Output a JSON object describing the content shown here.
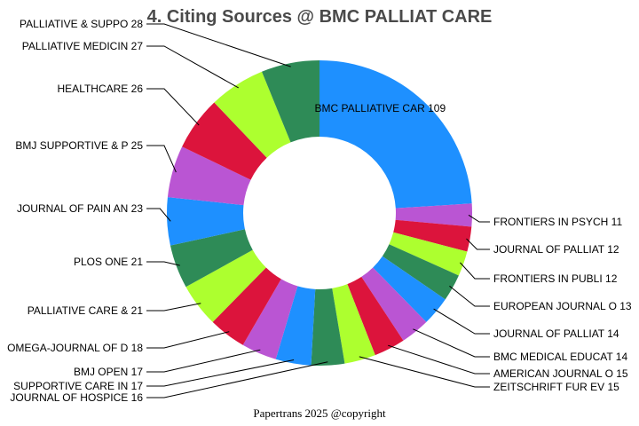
{
  "chart_data": {
    "type": "pie",
    "title": "4. Citing Sources @ BMC PALLIAT CARE",
    "donut": true,
    "slices": [
      {
        "label": "BMC PALLIATIVE CAR",
        "value": 109,
        "color": "#1E90FF"
      },
      {
        "label": "FRONTIERS IN PSYCH",
        "value": 11,
        "color": "#BA55D3"
      },
      {
        "label": "JOURNAL OF PALLIAT",
        "value": 12,
        "color": "#DC143C"
      },
      {
        "label": "FRONTIERS IN PUBLI",
        "value": 12,
        "color": "#ADFF2F"
      },
      {
        "label": "EUROPEAN JOURNAL O",
        "value": 13,
        "color": "#2E8B57"
      },
      {
        "label": "JOURNAL OF PALLIAT",
        "value": 14,
        "color": "#1E90FF"
      },
      {
        "label": "BMC MEDICAL EDUCAT",
        "value": 14,
        "color": "#BA55D3"
      },
      {
        "label": "AMERICAN JOURNAL O",
        "value": 15,
        "color": "#DC143C"
      },
      {
        "label": "ZEITSCHRIFT FUR EV",
        "value": 15,
        "color": "#ADFF2F"
      },
      {
        "label": "JOURNAL OF HOSPICE",
        "value": 16,
        "color": "#2E8B57"
      },
      {
        "label": "SUPPORTIVE CARE IN",
        "value": 17,
        "color": "#1E90FF"
      },
      {
        "label": "BMJ OPEN",
        "value": 17,
        "color": "#BA55D3"
      },
      {
        "label": "OMEGA-JOURNAL OF D",
        "value": 18,
        "color": "#DC143C"
      },
      {
        "label": "PALLIATIVE CARE & ",
        "value": 21,
        "color": "#ADFF2F"
      },
      {
        "label": "PLOS ONE",
        "value": 21,
        "color": "#2E8B57"
      },
      {
        "label": "JOURNAL OF PAIN AN",
        "value": 23,
        "color": "#1E90FF"
      },
      {
        "label": "BMJ SUPPORTIVE & P",
        "value": 25,
        "color": "#BA55D3"
      },
      {
        "label": "HEALTHCARE",
        "value": 26,
        "color": "#DC143C"
      },
      {
        "label": "PALLIATIVE MEDICIN",
        "value": 27,
        "color": "#ADFF2F"
      },
      {
        "label": "PALLIATIVE & SUPPO",
        "value": 28,
        "color": "#2E8B57"
      }
    ]
  },
  "footer": "Papertrans 2025 @copyright"
}
